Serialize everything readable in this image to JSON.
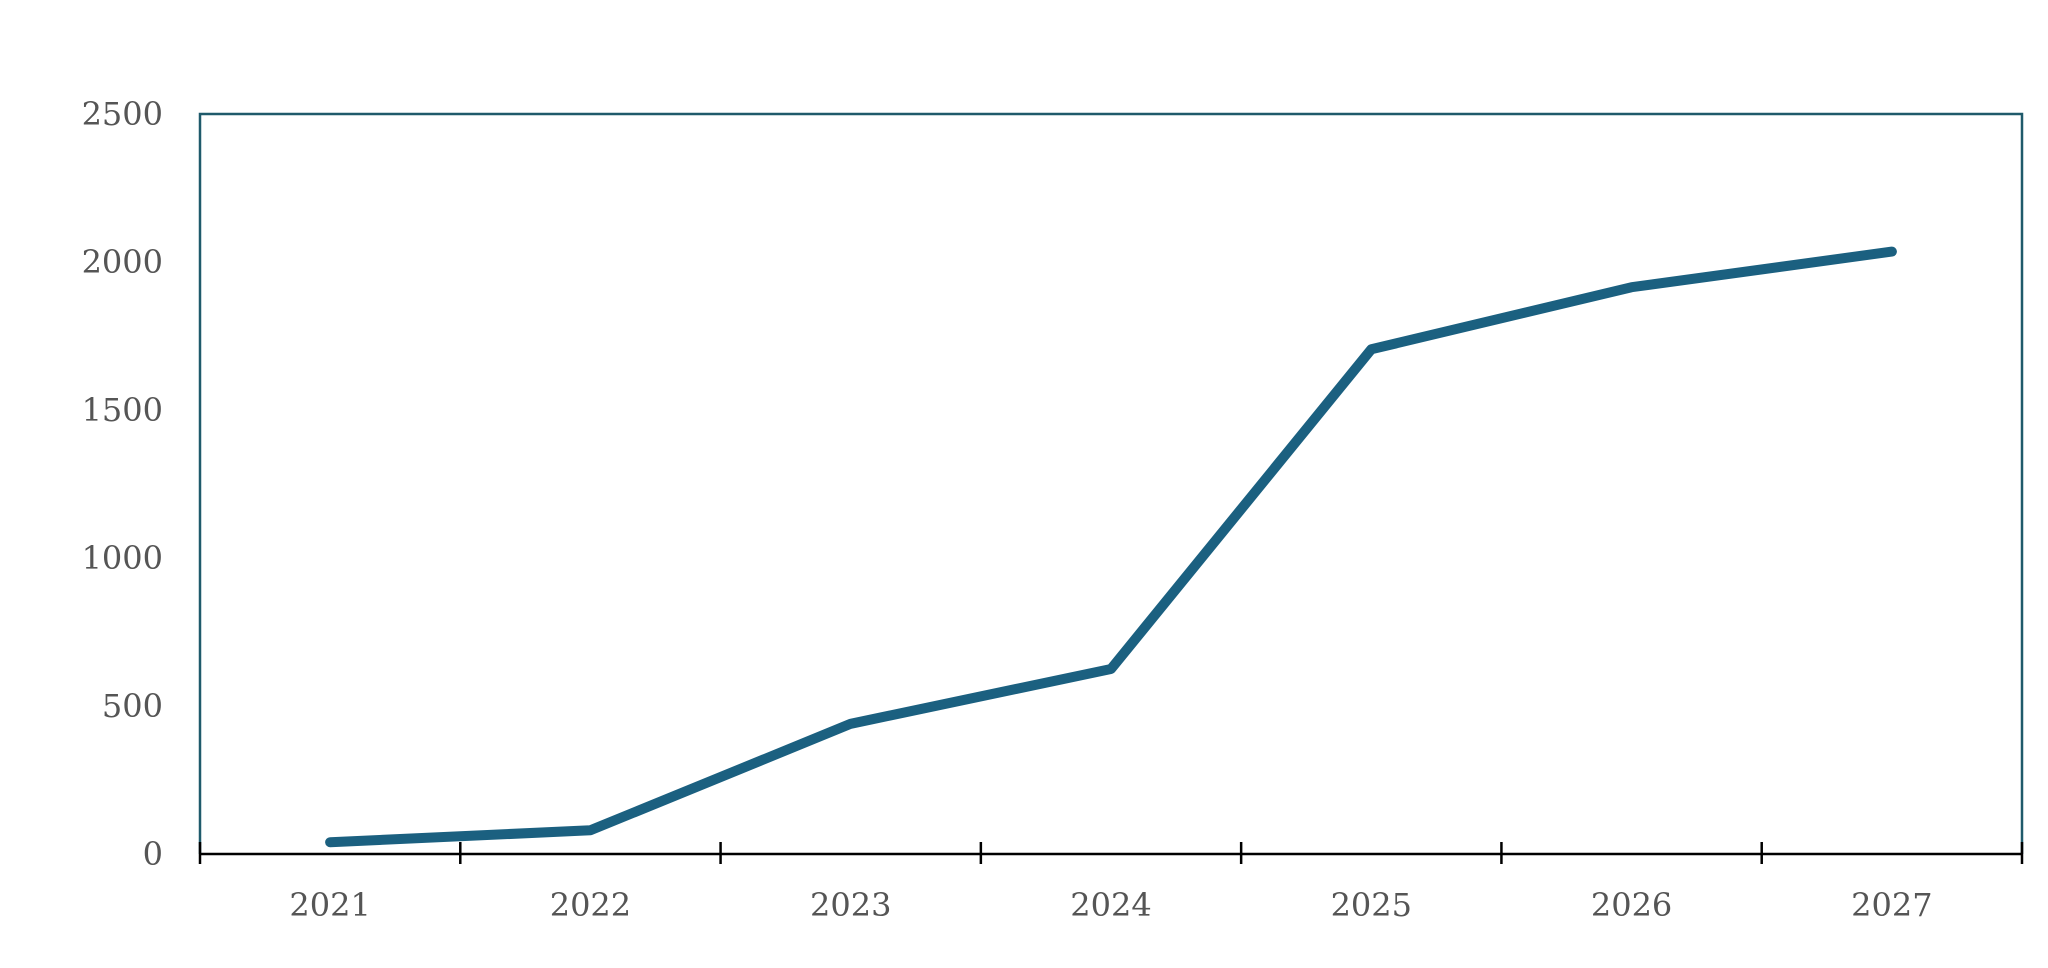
{
  "chart_data": {
    "type": "line",
    "title": "",
    "xlabel": "",
    "ylabel": "",
    "categories": [
      "2021",
      "2022",
      "2023",
      "2024",
      "2025",
      "2026",
      "2027"
    ],
    "series": [
      {
        "values": [
          40,
          80,
          440,
          625,
          1705,
          1915,
          2035
        ]
      }
    ],
    "ylim": [
      0,
      2500
    ],
    "yticks": [
      0,
      500,
      1000,
      1500,
      2000,
      2500
    ],
    "grid": false,
    "legend": "none",
    "colors": {
      "line": "#1b6080",
      "frame": "#1f5a6b",
      "axis": "#000000",
      "tick_text": "#555555"
    }
  }
}
